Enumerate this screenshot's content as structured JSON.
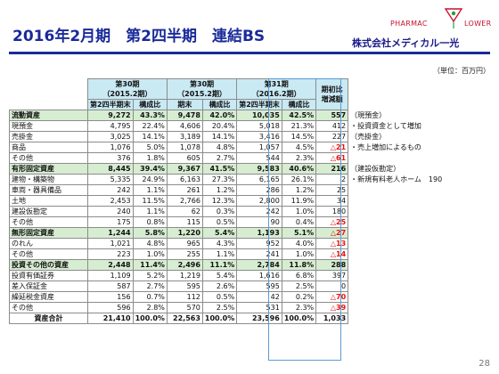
{
  "title": "2016年2月期　第2四半期　連結BS",
  "logo": {
    "text": "PHARMAC",
    "text2": "LOWER",
    "color": "#c8102e"
  },
  "company": "株式会社メディカル一光",
  "unit": "（単位：百万円）",
  "page_number": "28",
  "headers": {
    "period30a": "第30期",
    "period30a_sub": "（2015.2期）",
    "period30b": "第30期",
    "period30b_sub": "（2015.2期）",
    "period31": "第31期",
    "period31_sub": "（2016.2期）",
    "change": "期初比\n増減額",
    "q2_label": "第2四半期末",
    "ratio_label": "構成比",
    "end_label": "期末",
    "ratio_label2": "構成比",
    "q2_label2": "第2四半期末",
    "ratio_label3": "構成比"
  },
  "rows": [
    {
      "label": "流動資産",
      "v1": "9,272",
      "r1": "43.3%",
      "v2": "9,478",
      "r2": "42.0%",
      "v3": "10,035",
      "r3": "42.5%",
      "chg": "557",
      "note": "（現預金）",
      "hl": true
    },
    {
      "label": "現預金",
      "v1": "4,795",
      "r1": "22.4%",
      "v2": "4,606",
      "r2": "20.4%",
      "v3": "5,018",
      "r3": "21.3%",
      "chg": "412",
      "note": "・投資資金として増加"
    },
    {
      "label": "売掛金",
      "v1": "3,025",
      "r1": "14.1%",
      "v2": "3,189",
      "r2": "14.1%",
      "v3": "3,416",
      "r3": "14.5%",
      "chg": "227",
      "note": "（売掛金）"
    },
    {
      "label": "商品",
      "v1": "1,076",
      "r1": "5.0%",
      "v2": "1,078",
      "r2": "4.8%",
      "v3": "1,057",
      "r3": "4.5%",
      "chg": "△21",
      "neg": true,
      "note": "・売上増加によるもの"
    },
    {
      "label": "その他",
      "v1": "376",
      "r1": "1.8%",
      "v2": "605",
      "r2": "2.7%",
      "v3": "544",
      "r3": "2.3%",
      "chg": "△61",
      "neg": true,
      "note": ""
    },
    {
      "label": "有形固定資産",
      "v1": "8,445",
      "r1": "39.4%",
      "v2": "9,367",
      "r2": "41.5%",
      "v3": "9,583",
      "r3": "40.6%",
      "chg": "216",
      "note": "（建設仮勘定）",
      "hl": true
    },
    {
      "label": "建物・構築物",
      "v1": "5,335",
      "r1": "24.9%",
      "v2": "6,163",
      "r2": "27.3%",
      "v3": "6,165",
      "r3": "26.1%",
      "chg": "2",
      "note": "・新規有料老人ホーム　190"
    },
    {
      "label": "車両・器具備品",
      "v1": "242",
      "r1": "1.1%",
      "v2": "261",
      "r2": "1.2%",
      "v3": "286",
      "r3": "1.2%",
      "chg": "25",
      "note": ""
    },
    {
      "label": "土地",
      "v1": "2,453",
      "r1": "11.5%",
      "v2": "2,766",
      "r2": "12.3%",
      "v3": "2,800",
      "r3": "11.9%",
      "chg": "34",
      "note": ""
    },
    {
      "label": "建設仮勘定",
      "v1": "240",
      "r1": "1.1%",
      "v2": "62",
      "r2": "0.3%",
      "v3": "242",
      "r3": "1.0%",
      "chg": "180",
      "note": ""
    },
    {
      "label": "その他",
      "v1": "175",
      "r1": "0.8%",
      "v2": "115",
      "r2": "0.5%",
      "v3": "90",
      "r3": "0.4%",
      "chg": "△25",
      "neg": true,
      "note": ""
    },
    {
      "label": "無形固定資産",
      "v1": "1,244",
      "r1": "5.8%",
      "v2": "1,220",
      "r2": "5.4%",
      "v3": "1,193",
      "r3": "5.1%",
      "chg": "△27",
      "neg": true,
      "note": "",
      "hl": true
    },
    {
      "label": "のれん",
      "v1": "1,021",
      "r1": "4.8%",
      "v2": "965",
      "r2": "4.3%",
      "v3": "952",
      "r3": "4.0%",
      "chg": "△13",
      "neg": true,
      "note": ""
    },
    {
      "label": "その他",
      "v1": "223",
      "r1": "1.0%",
      "v2": "255",
      "r2": "1.1%",
      "v3": "241",
      "r3": "1.0%",
      "chg": "△14",
      "neg": true,
      "note": ""
    },
    {
      "label": "投資その他の資産",
      "v1": "2,448",
      "r1": "11.4%",
      "v2": "2,496",
      "r2": "11.1%",
      "v3": "2,784",
      "r3": "11.8%",
      "chg": "288",
      "note": "",
      "hl": true
    },
    {
      "label": "投資有価証券",
      "v1": "1,109",
      "r1": "5.2%",
      "v2": "1,219",
      "r2": "5.4%",
      "v3": "1,616",
      "r3": "6.8%",
      "chg": "397",
      "note": ""
    },
    {
      "label": "差入保証金",
      "v1": "587",
      "r1": "2.7%",
      "v2": "595",
      "r2": "2.6%",
      "v3": "595",
      "r3": "2.5%",
      "chg": "0",
      "note": ""
    },
    {
      "label": "繰延税金資産",
      "v1": "156",
      "r1": "0.7%",
      "v2": "112",
      "r2": "0.5%",
      "v3": "42",
      "r3": "0.2%",
      "chg": "△70",
      "neg": true,
      "note": ""
    },
    {
      "label": "その他",
      "v1": "596",
      "r1": "2.8%",
      "v2": "570",
      "r2": "2.5%",
      "v3": "531",
      "r3": "2.3%",
      "chg": "△39",
      "neg": true,
      "note": ""
    },
    {
      "label": "資産合計",
      "v1": "21,410",
      "r1": "100.0%",
      "v2": "22,563",
      "r2": "100.0%",
      "v3": "23,596",
      "r3": "100.0%",
      "chg": "1,033",
      "note": "",
      "tot": true
    }
  ]
}
